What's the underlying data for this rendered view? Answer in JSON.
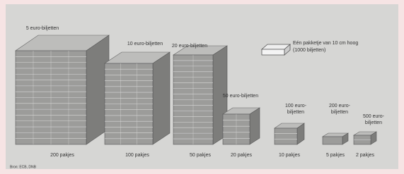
{
  "legend": {
    "lines": [
      "Eén pakketje van 10 cm hoog",
      "(1000 biljetten)"
    ]
  },
  "stacks": [
    {
      "label": [
        "5 euro-biljetten"
      ],
      "count": "200 pakjes"
    },
    {
      "label": [
        "10 euro-biljetten"
      ],
      "count": "100 pakjes"
    },
    {
      "label": [
        "20 euro-biljetten"
      ],
      "count": "50 pakjes"
    },
    {
      "label": [
        "50 euro-biljetten"
      ],
      "count": "20 pakjes"
    },
    {
      "label": [
        "100 euro-",
        "biljetten"
      ],
      "count": "10 pakjes"
    },
    {
      "label": [
        "200 euro-",
        "biljetten"
      ],
      "count": "5 pakjes"
    },
    {
      "label": [
        "500 euro-",
        "biljetten"
      ],
      "count": "2 pakjes"
    }
  ],
  "source": "Bron: ECB, DNB"
}
